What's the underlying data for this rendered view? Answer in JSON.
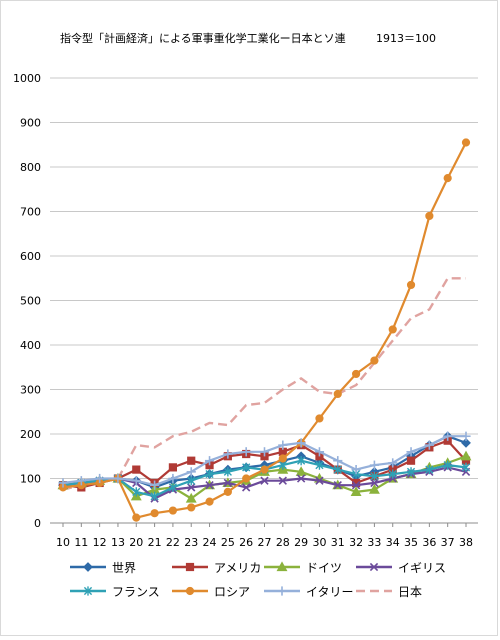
{
  "chart_data": {
    "type": "line",
    "title": "指令型「計画経済」による軍事重化学工業化ー日本とソ連",
    "subtitle": "1913＝100",
    "categories": [
      "10",
      "11",
      "12",
      "13",
      "20",
      "21",
      "22",
      "23",
      "24",
      "25",
      "26",
      "27",
      "28",
      "29",
      "30",
      "31",
      "32",
      "33",
      "34",
      "35",
      "36",
      "37",
      "38"
    ],
    "ylim": [
      0,
      1000
    ],
    "yticks": [
      0,
      100,
      200,
      300,
      400,
      500,
      600,
      700,
      800,
      900,
      1000
    ],
    "grid": true,
    "legend_position": "bottom",
    "series": [
      {
        "name": "世界",
        "color": "#2e6aa8",
        "marker": "diamond",
        "values": [
          85,
          90,
          95,
          100,
          95,
          80,
          95,
          100,
          110,
          120,
          125,
          130,
          140,
          150,
          135,
          120,
          105,
          115,
          125,
          150,
          175,
          195,
          180
        ]
      },
      {
        "name": "アメリカ",
        "color": "#b03a35",
        "marker": "square",
        "values": [
          85,
          80,
          90,
          100,
          120,
          90,
          125,
          140,
          130,
          150,
          155,
          150,
          160,
          175,
          150,
          120,
          90,
          105,
          120,
          140,
          170,
          185,
          140
        ]
      },
      {
        "name": "ドイツ",
        "color": "#8bb23c",
        "marker": "triangle",
        "values": [
          85,
          90,
          95,
          100,
          60,
          75,
          80,
          55,
          85,
          90,
          95,
          115,
          120,
          115,
          100,
          85,
          70,
          75,
          100,
          110,
          125,
          135,
          150
        ]
      },
      {
        "name": "イギリス",
        "color": "#6b4a9a",
        "marker": "x",
        "values": [
          85,
          90,
          95,
          100,
          90,
          55,
          75,
          80,
          85,
          90,
          80,
          95,
          95,
          100,
          95,
          85,
          85,
          90,
          100,
          110,
          115,
          125,
          115
        ]
      },
      {
        "name": "フランス",
        "color": "#2fa1b5",
        "marker": "star",
        "values": [
          85,
          90,
          95,
          100,
          70,
          60,
          80,
          95,
          110,
          115,
          125,
          120,
          130,
          140,
          130,
          120,
          110,
          105,
          110,
          115,
          120,
          130,
          125
        ]
      },
      {
        "name": "ロシア",
        "color": "#e08a2e",
        "marker": "circle",
        "values": [
          80,
          85,
          90,
          100,
          12,
          22,
          28,
          35,
          48,
          70,
          100,
          120,
          145,
          180,
          235,
          290,
          335,
          365,
          435,
          535,
          690,
          775,
          855
        ]
      },
      {
        "name": "イタリー",
        "color": "#95b0da",
        "marker": "plus",
        "values": [
          90,
          95,
          100,
          100,
          95,
          85,
          100,
          115,
          140,
          155,
          160,
          160,
          175,
          180,
          160,
          140,
          120,
          130,
          135,
          160,
          175,
          195,
          195
        ]
      },
      {
        "name": "日本",
        "color": "#e0a3a0",
        "marker": "none",
        "dashed": true,
        "values": [
          75,
          85,
          95,
          100,
          175,
          170,
          195,
          205,
          225,
          220,
          265,
          270,
          300,
          325,
          295,
          290,
          310,
          360,
          410,
          460,
          480,
          550,
          550
        ]
      }
    ]
  }
}
